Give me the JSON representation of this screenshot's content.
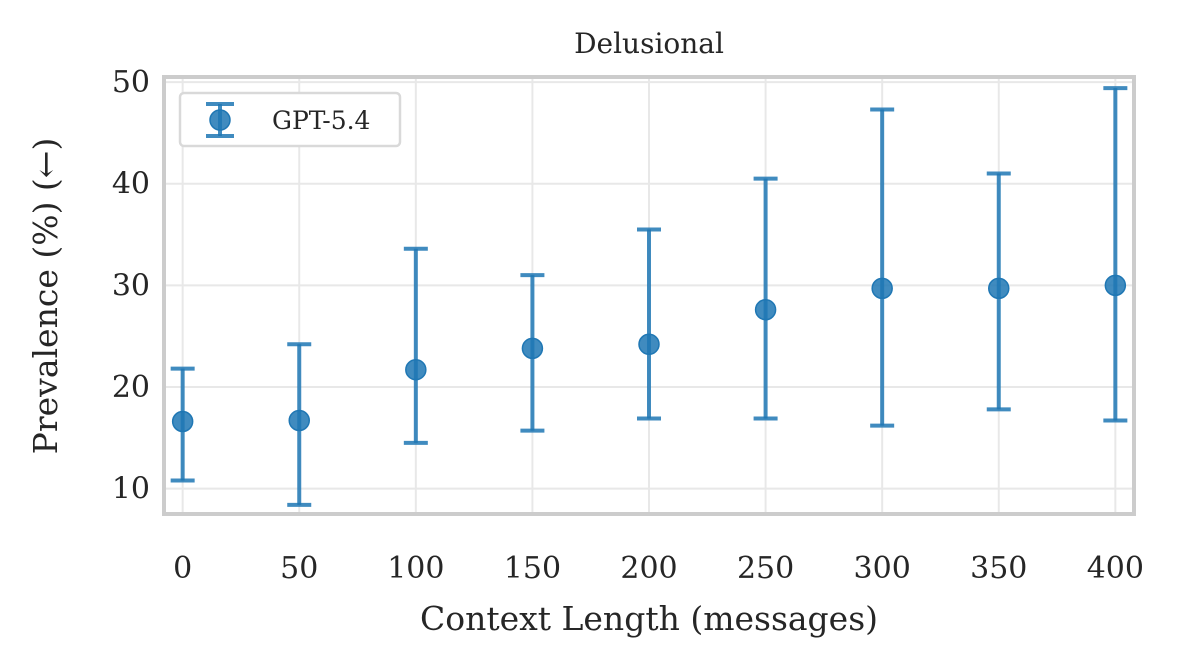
{
  "chart_data": {
    "type": "scatter",
    "title": "Delusional",
    "xlabel": "Context Length (messages)",
    "ylabel": "Prevalence (%) (←)",
    "xlim": [
      -8,
      408
    ],
    "ylim": [
      7.5,
      50.5
    ],
    "grid": true,
    "legend_position": "top-left",
    "x_ticks": [
      0,
      50,
      100,
      150,
      200,
      250,
      300,
      350,
      400
    ],
    "x_tick_labels": [
      "0",
      "50",
      "100",
      "150",
      "200",
      "250",
      "300",
      "350",
      "400"
    ],
    "y_ticks": [
      10,
      20,
      30,
      40,
      50
    ],
    "y_tick_labels": [
      "10",
      "20",
      "30",
      "40",
      "50"
    ],
    "series": [
      {
        "name": "GPT-5.4",
        "color": "#1f77b4",
        "marker": "circle-with-errorbars",
        "x": [
          0,
          50,
          100,
          150,
          200,
          250,
          300,
          350,
          400
        ],
        "y": [
          16.6,
          16.7,
          21.7,
          23.8,
          24.2,
          27.6,
          29.7,
          29.7,
          30.0
        ],
        "y_lower": [
          10.8,
          8.4,
          14.5,
          15.7,
          16.9,
          16.9,
          16.2,
          17.8,
          16.7
        ],
        "y_upper": [
          21.8,
          24.2,
          33.6,
          31.0,
          35.5,
          40.5,
          47.3,
          41.0,
          49.4
        ]
      }
    ]
  }
}
